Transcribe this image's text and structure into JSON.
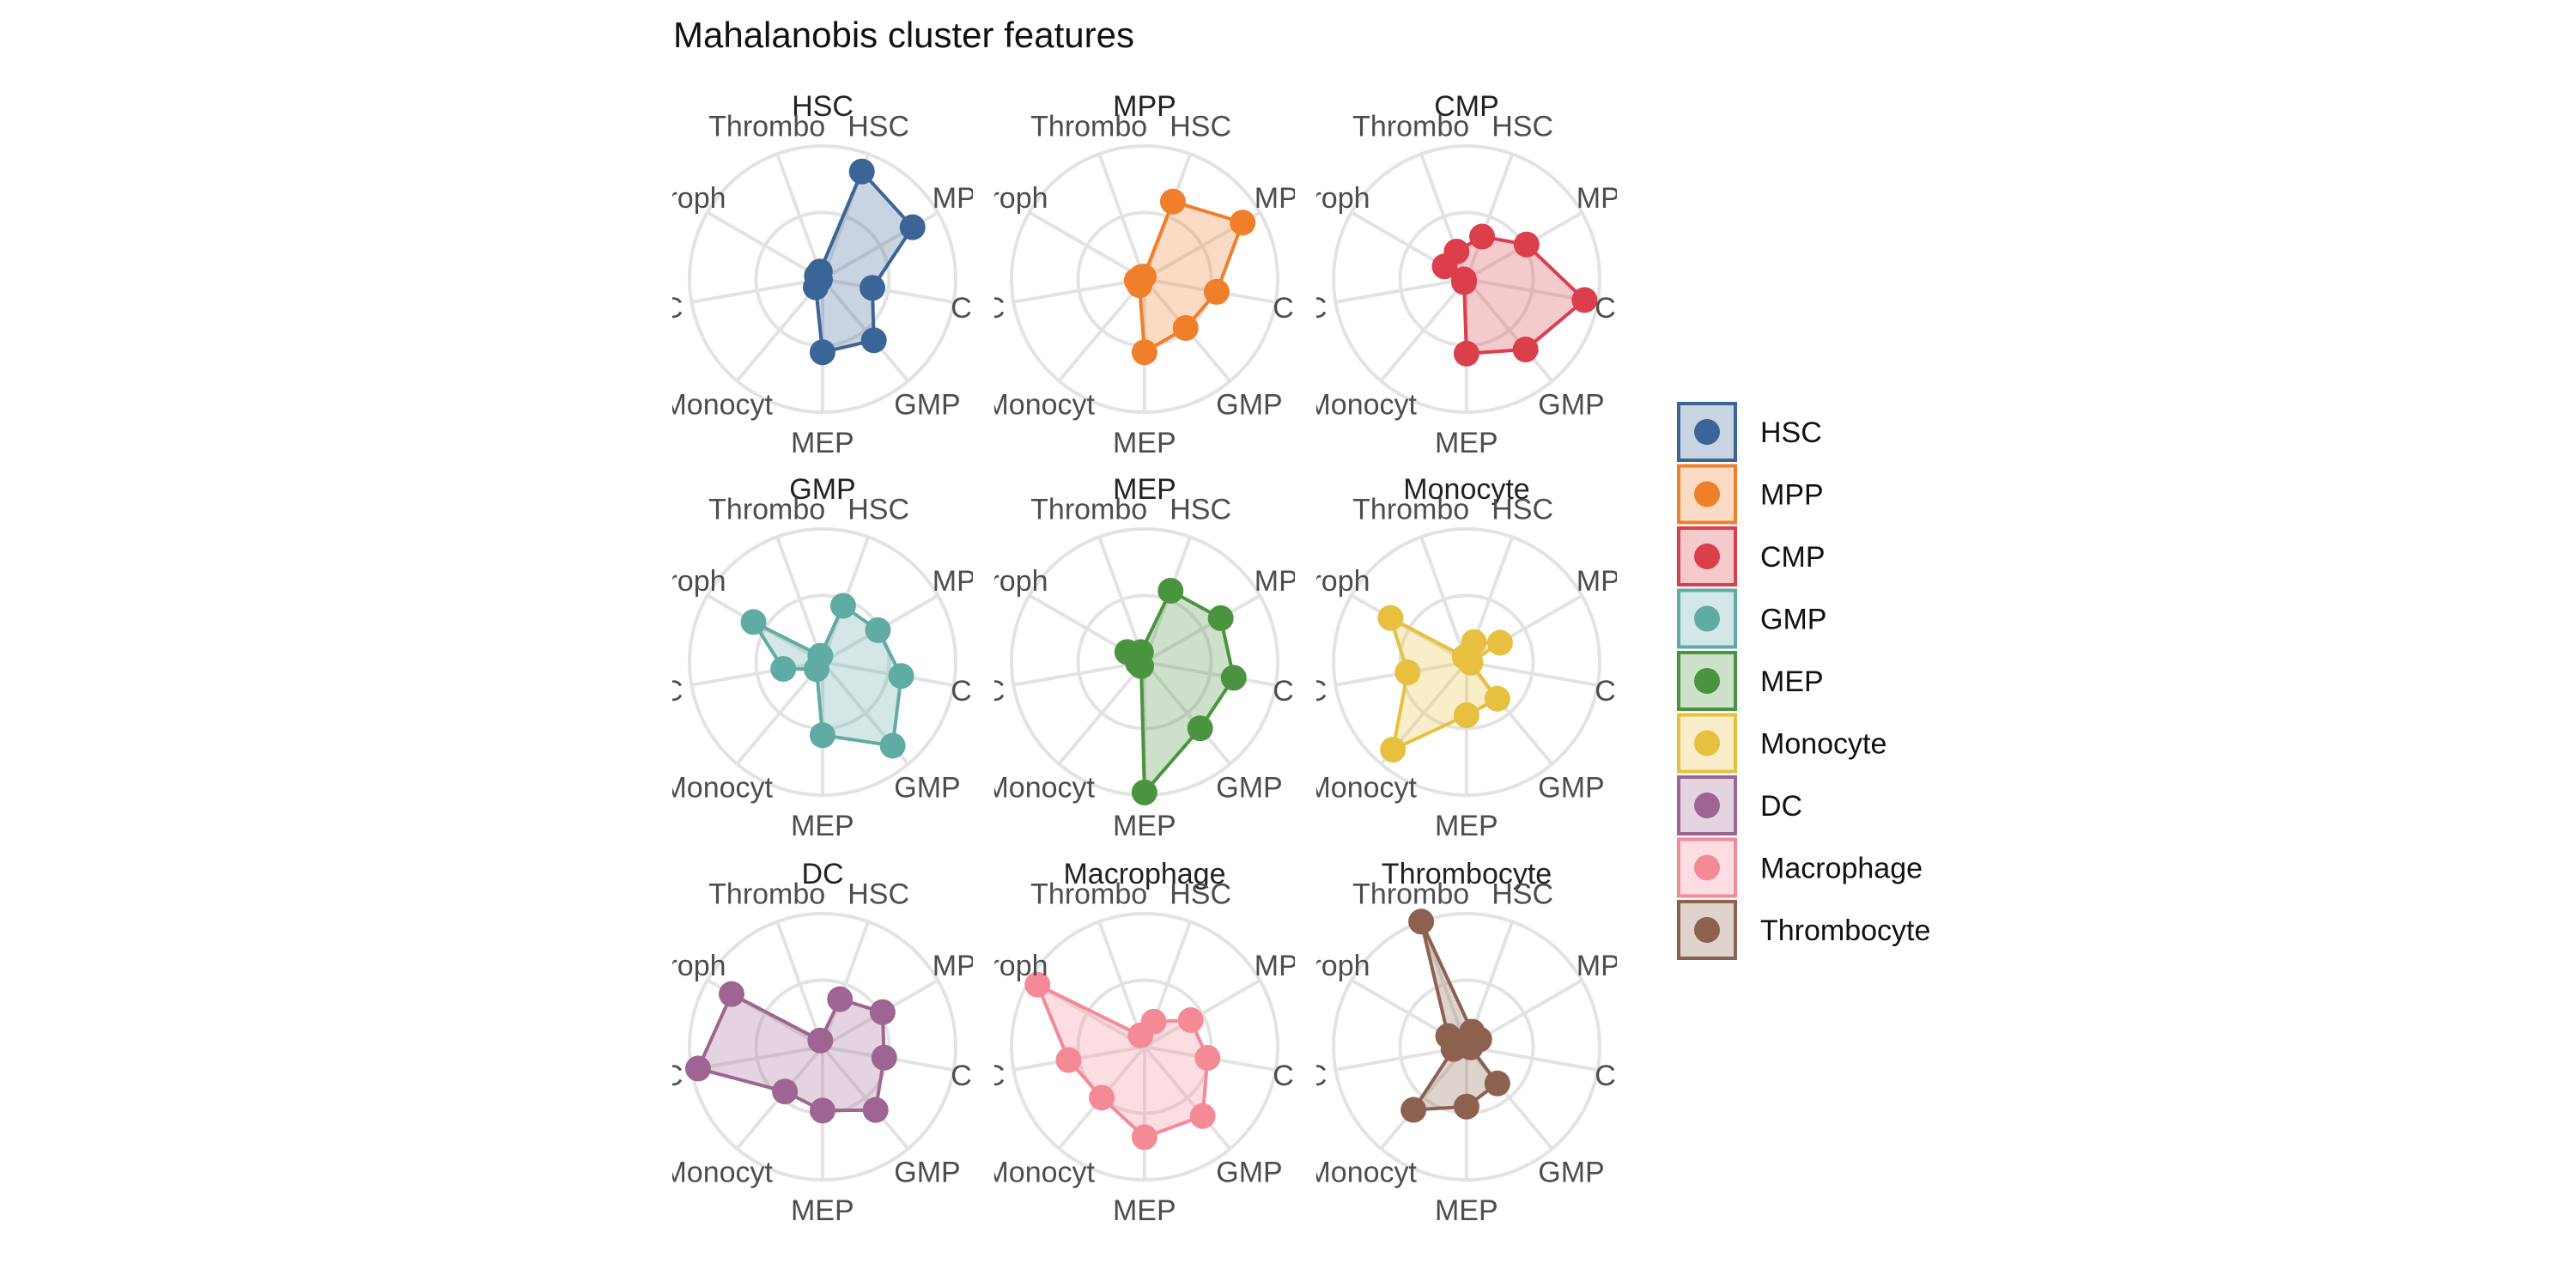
{
  "chart_data": {
    "type": "radar",
    "title": "Mahalanobis cluster features",
    "axes": [
      "HSC",
      "MPP",
      "CMP",
      "GMP",
      "MEP",
      "Monocyte",
      "DC",
      "Macrophage",
      "Thrombocyte"
    ],
    "axis_labels_shown": [
      "HSC",
      "MPP",
      "CMP",
      "GMP",
      "MEP",
      "Monocyt",
      "DC",
      "acroph",
      "Thrombo"
    ],
    "rlim": [
      0,
      1
    ],
    "grid": true,
    "legend_position": "right",
    "facets": [
      {
        "name": "HSC",
        "color": "#3a6596",
        "values": [
          0.86,
          0.78,
          0.38,
          0.6,
          0.55,
          0.08,
          0.02,
          0.05,
          0.06
        ]
      },
      {
        "name": "MPP",
        "color": "#ef7f2b",
        "values": [
          0.62,
          0.85,
          0.55,
          0.48,
          0.55,
          0.06,
          0.06,
          0.03,
          0.02
        ]
      },
      {
        "name": "CMP",
        "color": "#da3f4b",
        "values": [
          0.34,
          0.52,
          0.9,
          0.69,
          0.56,
          0.03,
          0.02,
          0.19,
          0.22
        ]
      },
      {
        "name": "GMP",
        "color": "#61aba5",
        "values": [
          0.45,
          0.48,
          0.6,
          0.82,
          0.55,
          0.07,
          0.3,
          0.6,
          0.05
        ]
      },
      {
        "name": "MEP",
        "color": "#4a943f",
        "values": [
          0.57,
          0.66,
          0.68,
          0.65,
          0.98,
          0.04,
          0.05,
          0.15,
          0.08
        ]
      },
      {
        "name": "Monocyte",
        "color": "#e8c03f",
        "values": [
          0.16,
          0.29,
          0.03,
          0.36,
          0.4,
          0.86,
          0.45,
          0.66,
          0.04
        ]
      },
      {
        "name": "DC",
        "color": "#9e6592",
        "values": [
          0.38,
          0.52,
          0.47,
          0.62,
          0.48,
          0.44,
          0.95,
          0.79,
          0.05
        ]
      },
      {
        "name": "Macrophage",
        "color": "#f58a97",
        "values": [
          0.2,
          0.4,
          0.48,
          0.68,
          0.68,
          0.5,
          0.58,
          0.93,
          0.09
        ]
      },
      {
        "name": "Thrombocyte",
        "color": "#8c6150",
        "values": [
          0.12,
          0.11,
          0.03,
          0.36,
          0.45,
          0.62,
          0.1,
          0.16,
          1.0
        ]
      }
    ]
  }
}
